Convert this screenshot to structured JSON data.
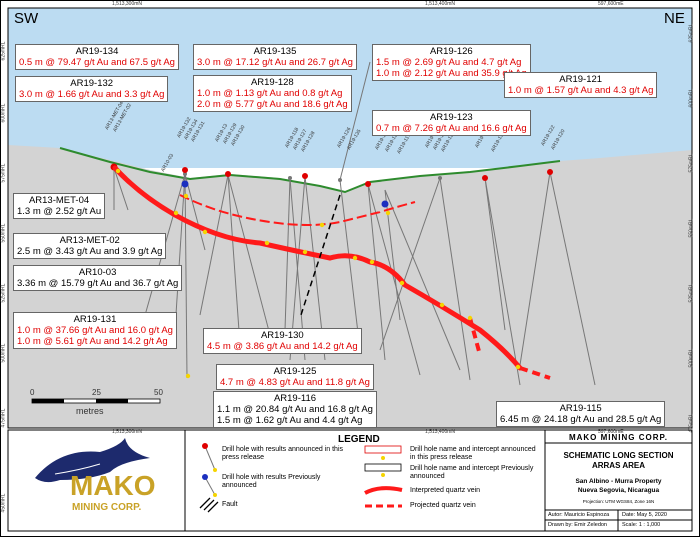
{
  "directions": {
    "left": "SW",
    "right": "NE"
  },
  "grid_top": [
    "1,513,300mN",
    "1,513,400mN",
    "597,600mE"
  ],
  "grid_bottom": [
    "1,513,300mN",
    "1,513,400mN",
    "597,600mE"
  ],
  "elevations_left": [
    "625mRL",
    "600mRL",
    "575mRL",
    "550mRL",
    "525mRL",
    "500mRL",
    "475mRL",
    "450mRL"
  ],
  "elevations_right": [
    "625mRL",
    "600mRL",
    "575mRL",
    "550mRL",
    "525mRL",
    "500mRL",
    "475mRL"
  ],
  "labels": [
    {
      "id": "AR19-134",
      "lines": [
        "0.5 m @ 79.47 g/t Au and 67.5 g/t Ag"
      ],
      "style": "red"
    },
    {
      "id": "AR19-132",
      "lines": [
        "3.0 m @ 1.66 g/t Au and 3.3 g/t Ag"
      ],
      "style": "red"
    },
    {
      "id": "AR19-135",
      "lines": [
        "3.0 m @ 17.12 g/t Au and 26.7 g/t Ag"
      ],
      "style": "red"
    },
    {
      "id": "AR19-128",
      "lines": [
        "1.0 m @ 1.13 g/t Au and 0.8 g/t Ag",
        "2.0 m @ 5.77 g/t Au and 18.6 g/t Ag"
      ],
      "style": "red"
    },
    {
      "id": "AR19-126",
      "lines": [
        "1.5 m @ 2.69 g/t Au and 4.7 g/t Ag",
        "1.0 m @ 2.12 g/t Au and 35.9 g/t Ag"
      ],
      "style": "red"
    },
    {
      "id": "AR19-121",
      "lines": [
        "1.0 m @ 1.57 g/t Au and 4.3 g/t Ag"
      ],
      "style": "red"
    },
    {
      "id": "AR19-123",
      "lines": [
        "0.7 m @ 7.26 g/t Au and 16.6 g/t Ag"
      ],
      "style": "red"
    },
    {
      "id": "AR13-MET-04",
      "lines": [
        "1.3 m @ 2.52 g/t Au"
      ],
      "style": "black"
    },
    {
      "id": "AR13-MET-02",
      "lines": [
        "2.5 m @ 3.43 g/t Au and 3.9 g/t Ag"
      ],
      "style": "black"
    },
    {
      "id": "AR10-03",
      "lines": [
        "3.36 m @ 15.79 g/t Au and 36.7 g/t Ag"
      ],
      "style": "black"
    },
    {
      "id": "AR19-131",
      "lines": [
        "1.0 m @ 37.66 g/t Au and 16.0 g/t Ag",
        "1.0 m @ 5.61 g/t Au and 14.2 g/t Ag"
      ],
      "style": "red"
    },
    {
      "id": "AR19-130",
      "lines": [
        "4.5 m @ 3.86 g/t Au and 14.2 g/t Ag"
      ],
      "style": "red"
    },
    {
      "id": "AR19-125",
      "lines": [
        "4.7 m @ 4.83 g/t Au and 11.8 g/t Ag"
      ],
      "style": "red"
    },
    {
      "id": "AR19-116",
      "lines": [
        "1.1 m @ 20.84 g/t Au and 16.8 g/t Ag",
        "1.5 m @ 1.62 g/t Au and 4.4 g/t Ag"
      ],
      "style": "black"
    },
    {
      "id": "AR19-115",
      "lines": [
        "6.45 m @ 24.18 g/t Au and 28.5 g/t Ag"
      ],
      "style": "black"
    }
  ],
  "collar_labels": [
    "AR13-MET-04",
    "AR13-MET-02",
    "AR19-132",
    "AR19-134",
    "AR19-131",
    "AR10-03",
    "AR19-13",
    "AR19-129",
    "AR19-130",
    "AR19-118",
    "AR19-127",
    "AR19-128",
    "AR19-126",
    "AR19-135",
    "AR19-116",
    "AR19-125",
    "AR19-117",
    "AR19-123",
    "AR19-124",
    "AR19-121",
    "AR19-119",
    "AR19-115",
    "AR19-122",
    "AR19-120"
  ],
  "scale": {
    "ticks": [
      "0",
      "25",
      "50"
    ],
    "unit": "metres"
  },
  "logo": {
    "name": "MAKO",
    "sub": "MINING CORP."
  },
  "legend": {
    "title": "LEGEND",
    "items": [
      "Drill hole with results announced in this press release",
      "Drill hole with results Previously announced",
      "Fault",
      "Drill hole name and intercept announced in this press release",
      "Drill hole name and intercept Previously announced",
      "Interpreted quartz vein",
      "Projected quartz vein"
    ]
  },
  "title_block": {
    "company": "MAKO MINING CORP.",
    "title1": "SCHEMATIC LONG SECTION",
    "title2": "ARRAS AREA",
    "property1": "San Albino - Murra Property",
    "property2": "Nueva Segovia, Nicaragua",
    "projection": "Projection: UTM WGS84, Zone 16N",
    "author": "Autor: Mauricio Espinoza",
    "date": "Date: May 5, 2020",
    "drawn": "Drawn by: Emir Zeledon",
    "scale": "Scale: 1 : 1,000"
  },
  "colors": {
    "sky": "#bcdcf2",
    "ground": "#d3d3d3",
    "topo": "#2e8b2e",
    "vein": "#ff1a1a",
    "hole": "#777777"
  }
}
